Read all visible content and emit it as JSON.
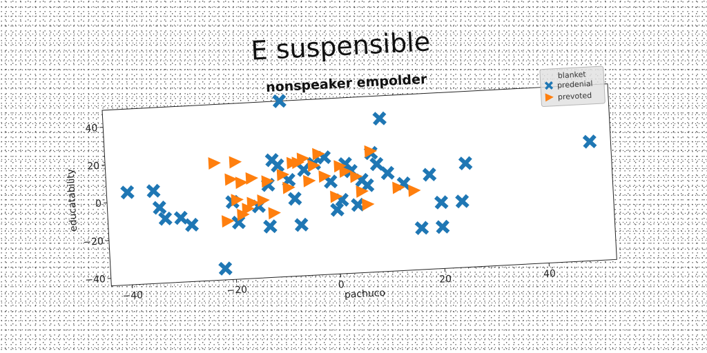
{
  "header": {
    "title": "E suspensible",
    "subtitle": "nonspeaker empolder"
  },
  "chart_data": {
    "type": "scatter",
    "title": "nonspeaker empolder",
    "suptitle": "E suspensible",
    "xlabel": "pachuco",
    "ylabel": "educatability",
    "xlim": [
      -44,
      53
    ],
    "ylim": [
      -44,
      49
    ],
    "xticks": [
      -40,
      -20,
      0,
      20,
      40
    ],
    "yticks": [
      -40,
      -20,
      0,
      20,
      40
    ],
    "grid": false,
    "legend": {
      "title": "blanket",
      "position": "top-right"
    },
    "series": [
      {
        "name": "predenial",
        "marker": "X",
        "color": "#1f77b4",
        "points": [
          [
            -10,
            49
          ],
          [
            9,
            37
          ],
          [
            49,
            19
          ],
          [
            -40,
            5
          ],
          [
            -35,
            5
          ],
          [
            -34,
            -4
          ],
          [
            -33,
            -10
          ],
          [
            -30,
            -10
          ],
          [
            -28,
            -14
          ],
          [
            -22,
            -38
          ],
          [
            -20,
            -3
          ],
          [
            -19,
            -14
          ],
          [
            -15,
            -6
          ],
          [
            -13,
            5
          ],
          [
            -12,
            18
          ],
          [
            -11,
            15
          ],
          [
            -13,
            -17
          ],
          [
            -9,
            7
          ],
          [
            -8,
            -3
          ],
          [
            -7,
            -17
          ],
          [
            -6,
            12
          ],
          [
            -4,
            15
          ],
          [
            -2,
            18
          ],
          [
            -1,
            5
          ],
          [
            0,
            -10
          ],
          [
            1,
            -5
          ],
          [
            2,
            14
          ],
          [
            3,
            10
          ],
          [
            4,
            -8
          ],
          [
            5,
            5
          ],
          [
            6,
            2
          ],
          [
            7,
            19
          ],
          [
            8,
            13
          ],
          [
            10,
            8
          ],
          [
            13,
            2
          ],
          [
            16,
            -22
          ],
          [
            18,
            6
          ],
          [
            20,
            -9
          ],
          [
            20,
            -22
          ],
          [
            24,
            -9
          ],
          [
            25,
            11
          ]
        ]
      },
      {
        "name": "prevoted",
        "marker": ">",
        "color": "#ff7f0e",
        "points": [
          [
            -23,
            18
          ],
          [
            -19,
            18
          ],
          [
            -20,
            9
          ],
          [
            -18,
            7
          ],
          [
            -16,
            9
          ],
          [
            -21,
            -13
          ],
          [
            -19,
            -2
          ],
          [
            -18,
            -10
          ],
          [
            -17,
            -7
          ],
          [
            -16,
            -4
          ],
          [
            -14,
            -3
          ],
          [
            -13,
            7
          ],
          [
            -12,
            -10
          ],
          [
            -10,
            10
          ],
          [
            -9,
            3
          ],
          [
            -8,
            16
          ],
          [
            -7,
            16
          ],
          [
            -6,
            18
          ],
          [
            -5,
            6
          ],
          [
            -4,
            14
          ],
          [
            -3,
            20
          ],
          [
            -2,
            8
          ],
          [
            0,
            -3
          ],
          [
            1,
            13
          ],
          [
            2,
            10
          ],
          [
            4,
            7
          ],
          [
            5,
            -1
          ],
          [
            6,
            -8
          ],
          [
            7,
            20
          ],
          [
            12,
            0
          ],
          [
            15,
            -2
          ]
        ]
      }
    ]
  }
}
